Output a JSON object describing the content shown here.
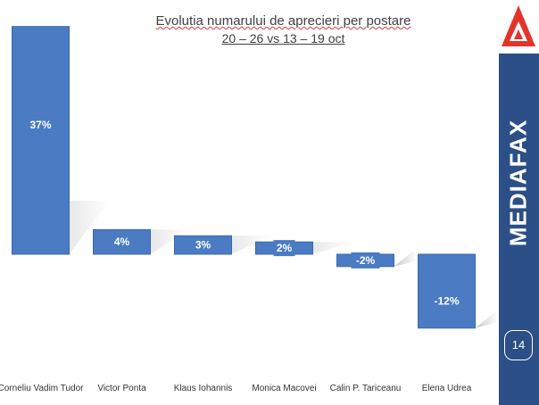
{
  "title": {
    "line1": "Evolutia numarului de aprecieri per postare",
    "line2": "20 – 26 vs 13 – 19 oct"
  },
  "colors": {
    "bar": "#4a7bc3",
    "sidebar": "#2b4f86",
    "logo_red": "#e3342b"
  },
  "sidebar": {
    "brand": "MEDIAFAX",
    "page_number": "14",
    "logo_icon": "mediafax-triangle-logo-icon"
  },
  "chart_data": {
    "type": "bar",
    "categories": [
      "Corneliu Vadim Tudor",
      "Victor Ponta",
      "Klaus Iohannis",
      "Monica Macovei",
      "Calin P. Tariceanu",
      "Elena Udrea"
    ],
    "values": [
      37,
      4,
      3,
      2,
      -2,
      -12
    ],
    "data_labels": [
      "37%",
      "4%",
      "3%",
      "2%",
      "-2%",
      "-12%"
    ],
    "unit": "%",
    "ylim": [
      -12,
      37
    ],
    "grid": false,
    "legend": "none",
    "axes_visible": false
  }
}
